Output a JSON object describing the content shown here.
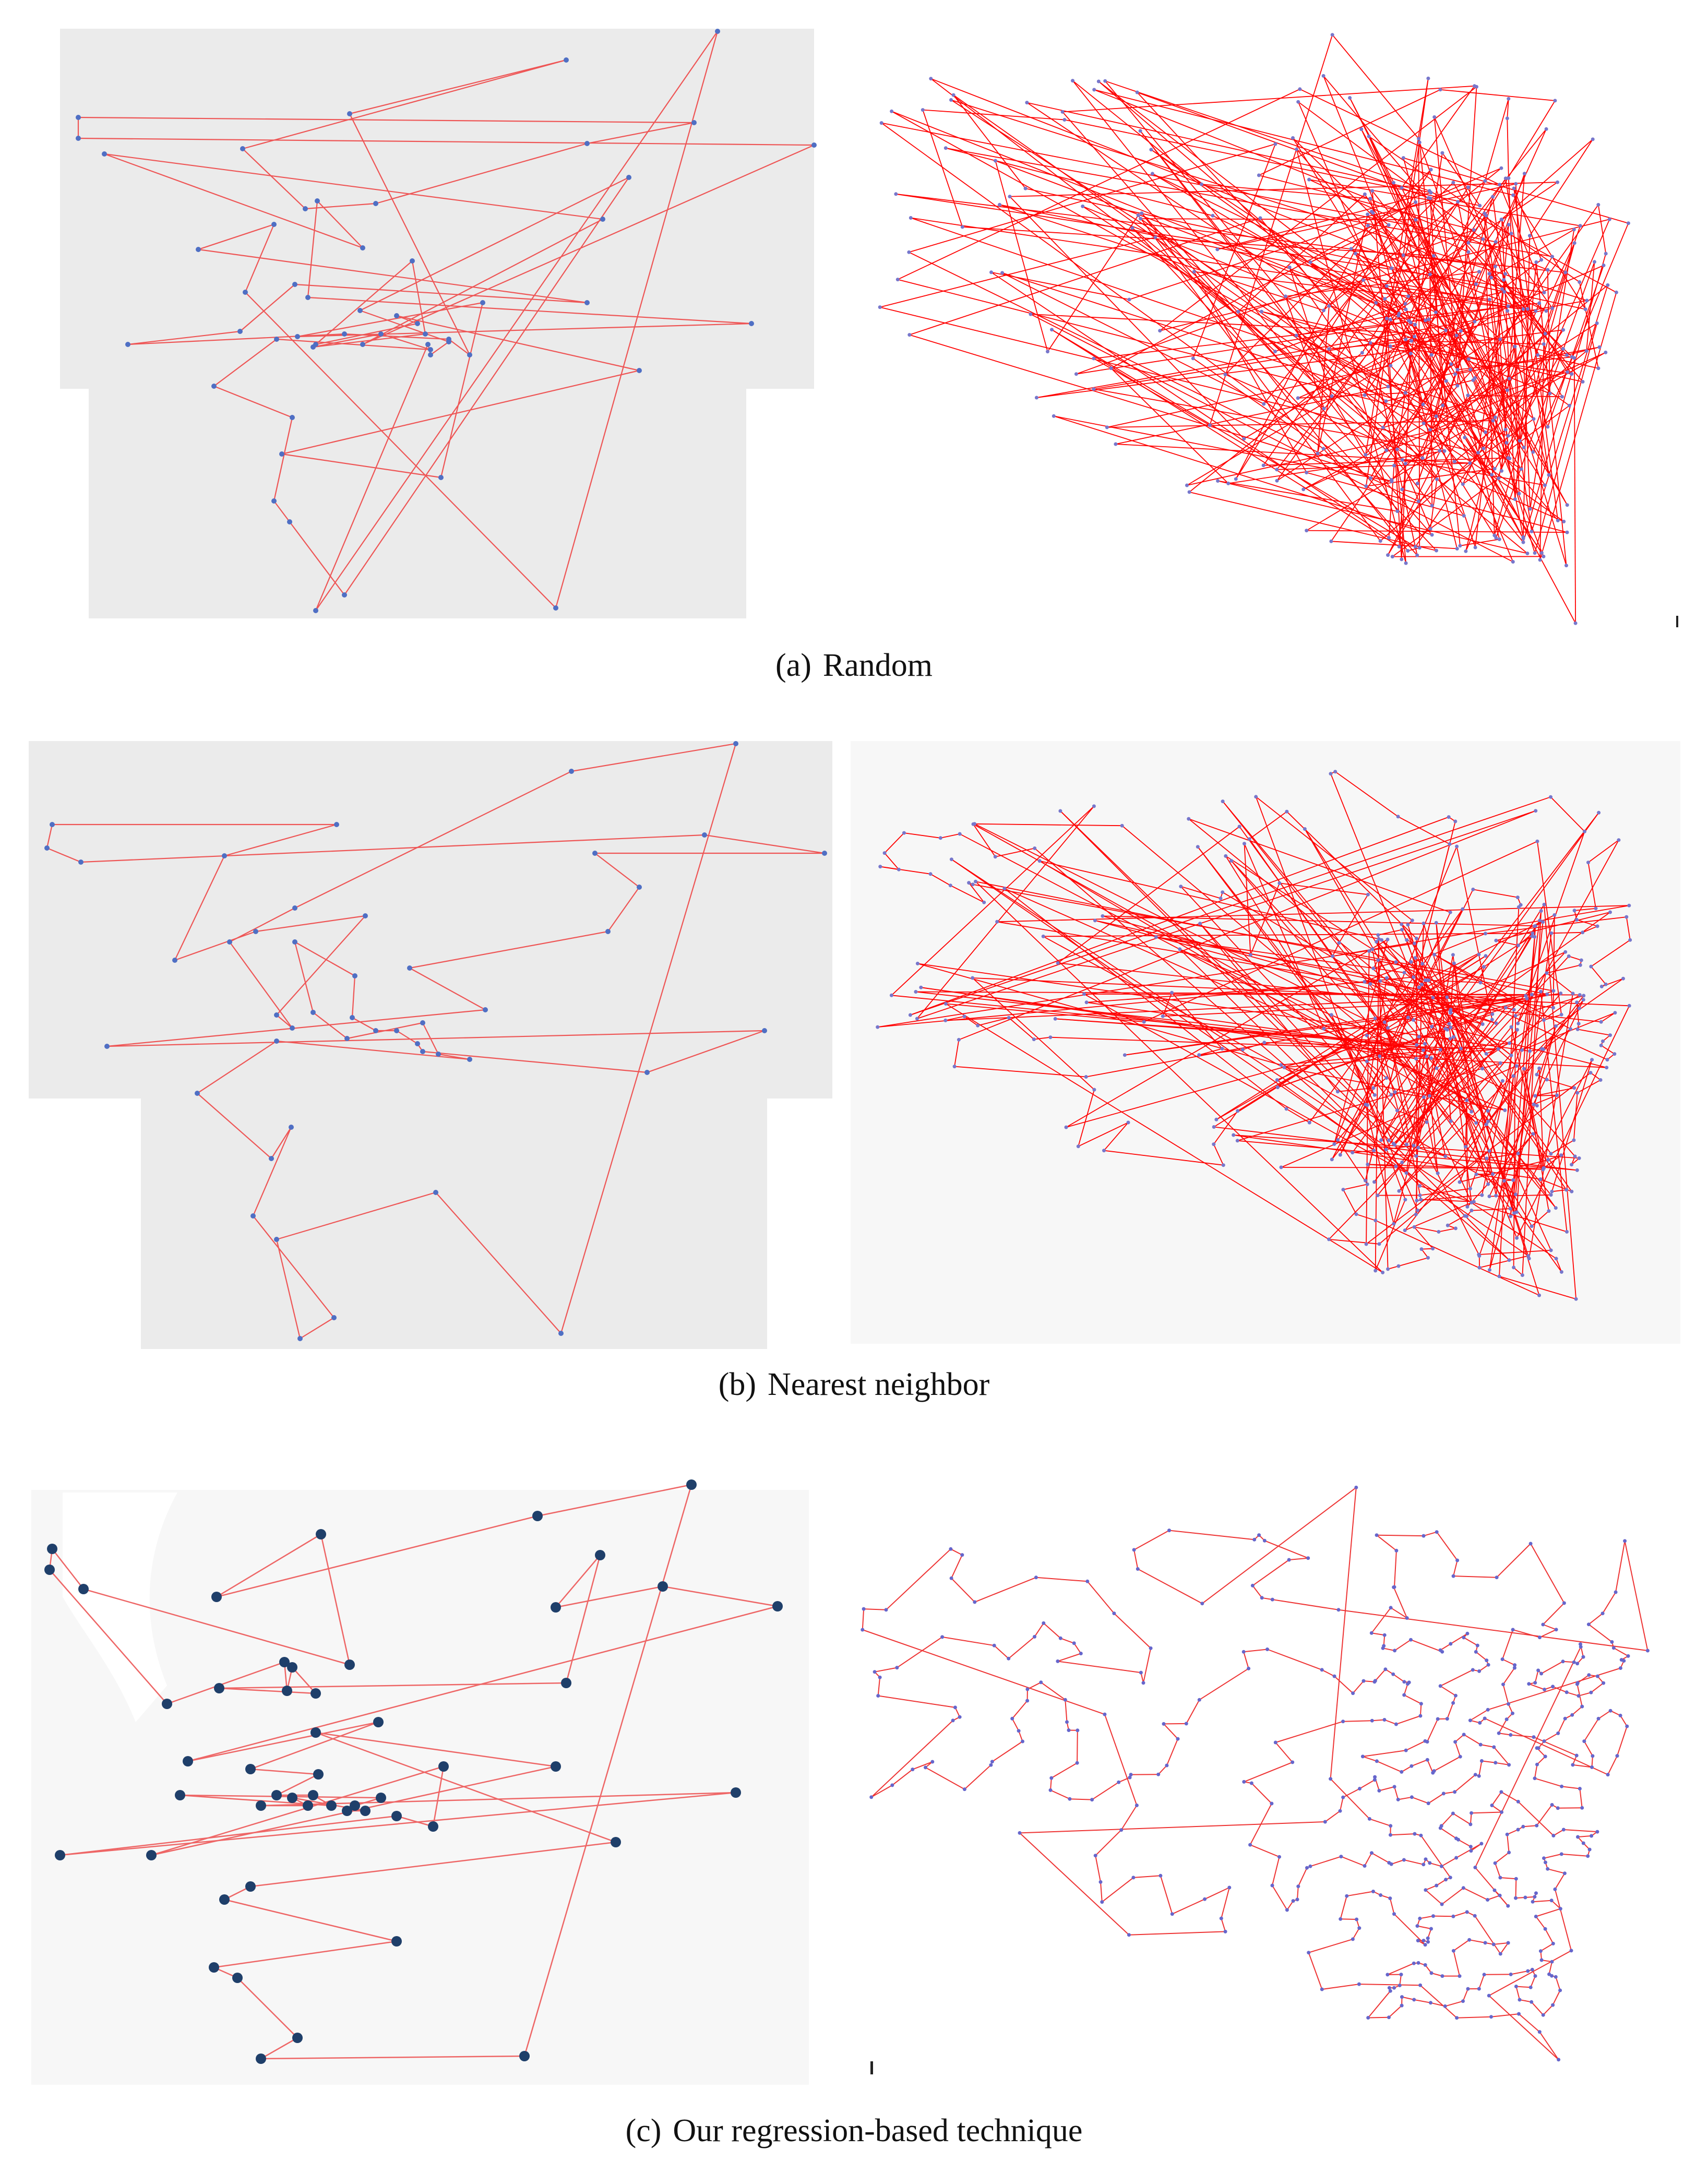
{
  "figure": {
    "panels": [
      {
        "id": "a",
        "caption_tag": "(a)",
        "caption_text": "Random",
        "left_plot": {
          "background": "#ebebeb",
          "edge_color": "#ee5555",
          "node_color": "#4f6fc4",
          "points": [
            [
              1375,
              60
            ],
            [
              1085,
              115
            ],
            [
              670,
              218
            ],
            [
              150,
              225
            ],
            [
              150,
              265
            ],
            [
              1125,
              275
            ],
            [
              1560,
              278
            ],
            [
              200,
              295
            ],
            [
              465,
              285
            ],
            [
              1330,
              235
            ],
            [
              1205,
              340
            ],
            [
              608,
              385
            ],
            [
              720,
              390
            ],
            [
              585,
              400
            ],
            [
              525,
              430
            ],
            [
              380,
              478
            ],
            [
              695,
              475
            ],
            [
              1155,
              420
            ],
            [
              790,
              500
            ],
            [
              565,
              545
            ],
            [
              1125,
              580
            ],
            [
              470,
              560
            ],
            [
              590,
              570
            ],
            [
              925,
              580
            ],
            [
              690,
              595
            ],
            [
              760,
              605
            ],
            [
              800,
              620
            ],
            [
              815,
              640
            ],
            [
              660,
              640
            ],
            [
              460,
              635
            ],
            [
              1440,
              620
            ],
            [
              570,
              645
            ],
            [
              530,
              650
            ],
            [
              860,
              650
            ],
            [
              605,
              660
            ],
            [
              730,
              640
            ],
            [
              245,
              660
            ],
            [
              695,
              660
            ],
            [
              825,
              670
            ],
            [
              860,
              655
            ],
            [
              900,
              680
            ],
            [
              820,
              660
            ],
            [
              600,
              665
            ],
            [
              410,
              740
            ],
            [
              825,
              680
            ],
            [
              1225,
              710
            ],
            [
              560,
              800
            ],
            [
              540,
              870
            ],
            [
              845,
              915
            ],
            [
              525,
              960
            ],
            [
              555,
              1000
            ],
            [
              660,
              1140
            ],
            [
              605,
              1170
            ],
            [
              1065,
              1165
            ]
          ],
          "tour": [
            0,
            53,
            21,
            14,
            15,
            20,
            19,
            29,
            36,
            28,
            33,
            40,
            2,
            1,
            8,
            13,
            12,
            5,
            9,
            3,
            4,
            6,
            37,
            17,
            7,
            16,
            11,
            22,
            30,
            31,
            23,
            48,
            47,
            45,
            25,
            26,
            34,
            18,
            27,
            42,
            35,
            38,
            32,
            43,
            46,
            49,
            50,
            51,
            10,
            24,
            39,
            44,
            41,
            52
          ]
        },
        "right_plot": {
          "background": "#ffffff",
          "edge_color": "#ff0000",
          "node_color": "#7777cc",
          "style": "random",
          "seed": 17
        }
      },
      {
        "id": "b",
        "caption_tag": "(b)",
        "caption_text": "Nearest neighbor",
        "left_plot": {
          "background": "#ebebeb",
          "edge_color": "#ee5555",
          "node_color": "#4f6fc4",
          "points": [
            [
              1410,
              1425
            ],
            [
              1095,
              1478
            ],
            [
              645,
              1580
            ],
            [
              100,
              1580
            ],
            [
              90,
              1625
            ],
            [
              155,
              1652
            ],
            [
              1350,
              1600
            ],
            [
              1580,
              1635
            ],
            [
              430,
              1640
            ],
            [
              1140,
              1635
            ],
            [
              700,
              1755
            ],
            [
              565,
              1740
            ],
            [
              1225,
              1700
            ],
            [
              490,
              1785
            ],
            [
              335,
              1840
            ],
            [
              565,
              1805
            ],
            [
              1165,
              1785
            ],
            [
              440,
              1805
            ],
            [
              785,
              1855
            ],
            [
              680,
              1870
            ],
            [
              930,
              1935
            ],
            [
              530,
              1945
            ],
            [
              600,
              1940
            ],
            [
              205,
              2005
            ],
            [
              675,
              1950
            ],
            [
              1465,
              1975
            ],
            [
              560,
              1970
            ],
            [
              810,
              1960
            ],
            [
              720,
              1975
            ],
            [
              760,
              1975
            ],
            [
              665,
              1990
            ],
            [
              530,
              1995
            ],
            [
              800,
              2000
            ],
            [
              810,
              2015
            ],
            [
              840,
              2020
            ],
            [
              900,
              2030
            ],
            [
              1240,
              2055
            ],
            [
              378,
              2095
            ],
            [
              558,
              2160
            ],
            [
              520,
              2220
            ],
            [
              835,
              2285
            ],
            [
              485,
              2330
            ],
            [
              530,
              2375
            ],
            [
              640,
              2525
            ],
            [
              575,
              2565
            ],
            [
              1075,
              2555
            ]
          ],
          "tour": [
            0,
            1,
            11,
            17,
            26,
            21,
            10,
            13,
            14,
            8,
            2,
            3,
            4,
            5,
            6,
            7,
            9,
            12,
            16,
            18,
            20,
            23,
            25,
            36,
            33,
            32,
            29,
            28,
            24,
            19,
            15,
            22,
            30,
            27,
            34,
            35,
            31,
            37,
            39,
            38,
            41,
            43,
            44,
            42,
            40,
            45
          ]
        },
        "right_plot": {
          "background": "#f7f7f7",
          "edge_color": "#ff0000",
          "node_color": "#7777cc",
          "style": "nearest",
          "seed": 23
        }
      },
      {
        "id": "c",
        "caption_tag": "(c)",
        "caption_text": "Our regression-based technique",
        "left_plot": {
          "background": "#f7f7f7",
          "edge_color": "#ee6666",
          "node_color": "#1f3f6a",
          "points": [
            [
              1325,
              2845
            ],
            [
              1030,
              2905
            ],
            [
              615,
              2940
            ],
            [
              100,
              2968
            ],
            [
              95,
              3008
            ],
            [
              160,
              3045
            ],
            [
              415,
              3060
            ],
            [
              1065,
              3080
            ],
            [
              1270,
              3040
            ],
            [
              1490,
              3078
            ],
            [
              1150,
              2980
            ],
            [
              545,
              3185
            ],
            [
              670,
              3190
            ],
            [
              560,
              3195
            ],
            [
              1085,
              3225
            ],
            [
              420,
              3235
            ],
            [
              320,
              3265
            ],
            [
              550,
              3240
            ],
            [
              605,
              3245
            ],
            [
              725,
              3300
            ],
            [
              605,
              3320
            ],
            [
              360,
              3375
            ],
            [
              850,
              3385
            ],
            [
              1065,
              3385
            ],
            [
              480,
              3390
            ],
            [
              610,
              3400
            ],
            [
              530,
              3440
            ],
            [
              600,
              3440
            ],
            [
              635,
              3460
            ],
            [
              345,
              3440
            ],
            [
              730,
              3445
            ],
            [
              680,
              3460
            ],
            [
              665,
              3470
            ],
            [
              700,
              3470
            ],
            [
              560,
              3445
            ],
            [
              590,
              3460
            ],
            [
              500,
              3460
            ],
            [
              1410,
              3435
            ],
            [
              115,
              3555
            ],
            [
              760,
              3480
            ],
            [
              830,
              3500
            ],
            [
              290,
              3555
            ],
            [
              1180,
              3530
            ],
            [
              480,
              3615
            ],
            [
              430,
              3640
            ],
            [
              760,
              3720
            ],
            [
              410,
              3770
            ],
            [
              455,
              3790
            ],
            [
              570,
              3905
            ],
            [
              500,
              3945
            ],
            [
              1005,
              3940
            ]
          ],
          "tour": [
            0,
            1,
            6,
            2,
            12,
            5,
            3,
            4,
            16,
            11,
            17,
            13,
            18,
            15,
            14,
            10,
            7,
            8,
            9,
            21,
            19,
            24,
            25,
            26,
            27,
            28,
            29,
            30,
            31,
            32,
            33,
            34,
            35,
            36,
            37,
            38,
            39,
            40,
            22,
            41,
            23,
            20,
            42,
            43,
            44,
            45,
            46,
            47,
            48,
            49,
            50
          ]
        },
        "right_plot": {
          "background": "#ffffff",
          "edge_color": "#ee3333",
          "node_color": "#6666cc",
          "style": "regression",
          "seed": 31
        }
      }
    ]
  }
}
